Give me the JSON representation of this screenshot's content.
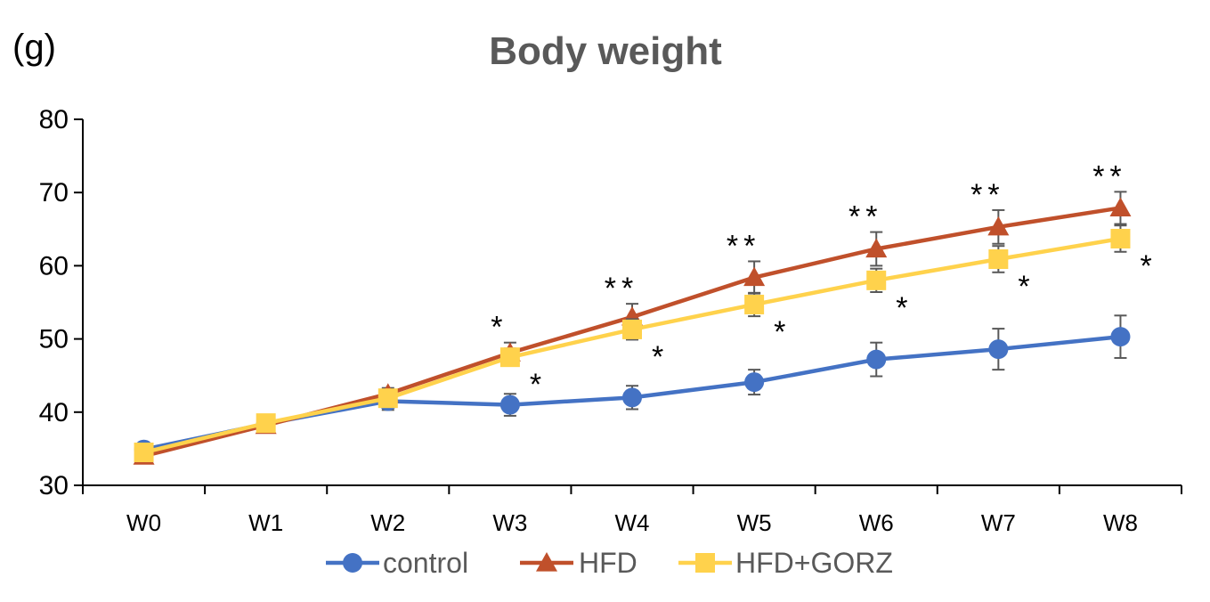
{
  "chart_data": {
    "type": "line",
    "title": "Body weight",
    "unit_label": "(g)",
    "xlabel": "",
    "ylabel": "(g)",
    "ylim": [
      30,
      80
    ],
    "yticks": [
      "30",
      "40",
      "50",
      "60",
      "70",
      "80"
    ],
    "categories": [
      "W0",
      "W1",
      "W2",
      "W3",
      "W4",
      "W5",
      "W6",
      "W7",
      "W8"
    ],
    "series": [
      {
        "name": "control",
        "color": "#4472C4",
        "marker": "circle",
        "values": [
          34.9,
          38.4,
          41.5,
          41.0,
          42.0,
          44.1,
          47.2,
          48.6,
          50.3
        ],
        "errors": [
          0.8,
          0.8,
          1.2,
          1.5,
          1.6,
          1.7,
          2.3,
          2.8,
          2.9
        ],
        "annotations": [
          "",
          "",
          "",
          "",
          "",
          "",
          "",
          "",
          ""
        ]
      },
      {
        "name": "HFD",
        "color": "#C0502B",
        "marker": "triangle",
        "values": [
          34.0,
          38.2,
          42.5,
          48.1,
          53.0,
          58.4,
          62.3,
          65.3,
          67.9
        ],
        "errors": [
          0.5,
          0.8,
          0.8,
          1.4,
          1.8,
          2.2,
          2.3,
          2.3,
          2.2
        ],
        "annotations": [
          "",
          "",
          "",
          "*",
          "**",
          "**",
          "**",
          "**",
          "**"
        ]
      },
      {
        "name": "HFD+GORZ",
        "color": "#FFD24C",
        "marker": "square",
        "values": [
          34.5,
          38.5,
          41.9,
          47.5,
          51.3,
          54.7,
          58.0,
          60.9,
          63.7
        ],
        "errors": [
          0.5,
          0.6,
          1.0,
          1.2,
          1.4,
          1.6,
          1.6,
          1.8,
          1.8
        ],
        "annotations": [
          "",
          "",
          "",
          "*",
          "*",
          "*",
          "*",
          "*",
          "*"
        ]
      }
    ],
    "legend_position": "bottom"
  }
}
